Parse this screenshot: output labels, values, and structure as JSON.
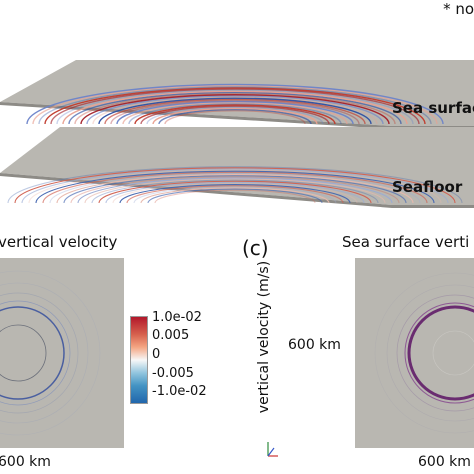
{
  "note": "* not",
  "top": {
    "sea_surface_label": "Sea surfac",
    "seafloor_label": "Seafloor"
  },
  "panel_b": {
    "title": "vertical velocity",
    "scale": "600 km"
  },
  "panel_c": {
    "label": "(c)",
    "title": "Sea surface verti",
    "scale_mid": "600 km",
    "scale_bottom": "600 km"
  },
  "colorbar": {
    "label": "vertical velocity (m/s)",
    "ticks": [
      "1.0e-02",
      "0.005",
      "0",
      "-0.005",
      "-1.0e-02"
    ],
    "colors": {
      "max": "#b2182b",
      "mid": "#f7f7f7",
      "min": "#2166ac"
    }
  },
  "colors": {
    "background": "#ffffff",
    "slab": "#b9b7b1",
    "ring_red": "#c0392b",
    "ring_blue": "#2c4fa3",
    "ring_purple": "#6a2c70"
  }
}
